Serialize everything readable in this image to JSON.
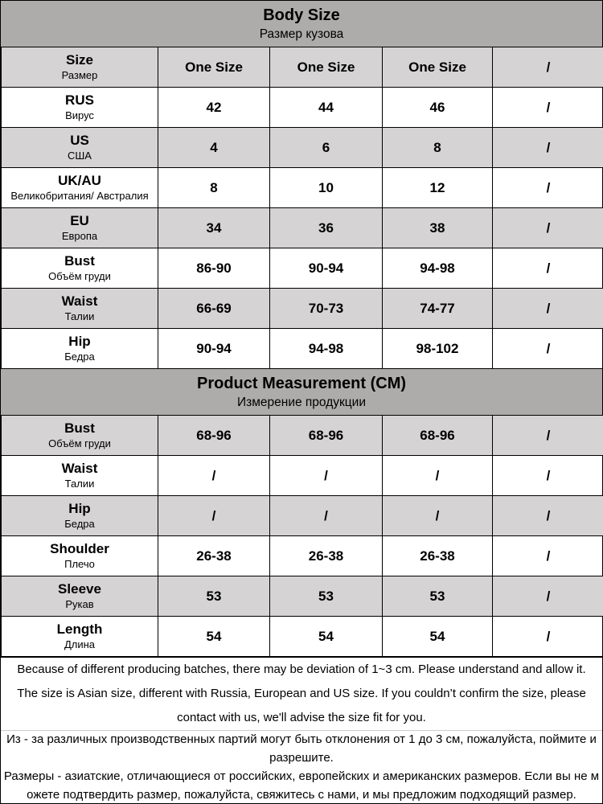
{
  "colors": {
    "header_bg": "#aeabab",
    "shaded_row_bg": "#d5d3d3",
    "border": "#000000",
    "note_divider": "#cccccc",
    "text": "#000000",
    "background": "#ffffff"
  },
  "chart_data": [
    {
      "type": "table",
      "title": "Body Size",
      "subtitle": "Размер кузова",
      "columns": [
        "label",
        "size1",
        "size2",
        "size3",
        "size4"
      ],
      "rows": [
        {
          "label_en": "Size",
          "label_ru": "Размер",
          "values": [
            "One Size",
            "One Size",
            "One Size",
            "/"
          ],
          "shaded": true
        },
        {
          "label_en": "RUS",
          "label_ru": "Вирус",
          "values": [
            "42",
            "44",
            "46",
            "/"
          ],
          "shaded": false
        },
        {
          "label_en": "US",
          "label_ru": "США",
          "values": [
            "4",
            "6",
            "8",
            "/"
          ],
          "shaded": true
        },
        {
          "label_en": "UK/AU",
          "label_ru": "Великобритания/ Австралия",
          "values": [
            "8",
            "10",
            "12",
            "/"
          ],
          "shaded": false
        },
        {
          "label_en": "EU",
          "label_ru": "Европа",
          "values": [
            "34",
            "36",
            "38",
            "/"
          ],
          "shaded": true
        },
        {
          "label_en": "Bust",
          "label_ru": "Объём груди",
          "values": [
            "86-90",
            "90-94",
            "94-98",
            "/"
          ],
          "shaded": false
        },
        {
          "label_en": "Waist",
          "label_ru": "Талии",
          "values": [
            "66-69",
            "70-73",
            "74-77",
            "/"
          ],
          "shaded": true
        },
        {
          "label_en": "Hip",
          "label_ru": "Бедра",
          "values": [
            "90-94",
            "94-98",
            "98-102",
            "/"
          ],
          "shaded": false
        }
      ]
    },
    {
      "type": "table",
      "title": "Product Measurement (CM)",
      "subtitle": "Измерение продукции",
      "columns": [
        "label",
        "size1",
        "size2",
        "size3",
        "size4"
      ],
      "rows": [
        {
          "label_en": "Bust",
          "label_ru": "Объём груди",
          "values": [
            "68-96",
            "68-96",
            "68-96",
            "/"
          ],
          "shaded": true
        },
        {
          "label_en": "Waist",
          "label_ru": "Талии",
          "values": [
            "/",
            "/",
            "/",
            "/"
          ],
          "shaded": false
        },
        {
          "label_en": "Hip",
          "label_ru": "Бедра",
          "values": [
            "/",
            "/",
            "/",
            "/"
          ],
          "shaded": true
        },
        {
          "label_en": "Shoulder",
          "label_ru": "Плечо",
          "values": [
            "26-38",
            "26-38",
            "26-38",
            "/"
          ],
          "shaded": false
        },
        {
          "label_en": "Sleeve",
          "label_ru": "Рукав",
          "values": [
            "53",
            "53",
            "53",
            "/"
          ],
          "shaded": true
        },
        {
          "label_en": "Length",
          "label_ru": "Длина",
          "values": [
            "54",
            "54",
            "54",
            "/"
          ],
          "shaded": false
        }
      ]
    }
  ],
  "notes": {
    "en": [
      "Because of different producing batches, there may be deviation of 1~3 cm. Please understand and allow it.",
      "The size is Asian size, different with Russia, European and US size. If you couldn’t confirm the size, please contact with us, we'll advise the size fit for you."
    ],
    "ru": [
      "Из - за различных производственных партий могут быть отклонения от 1 до 3 см, пожалуйста, поймите и разрешите.",
      "Размеры - азиатские, отличающиеся от российских, европейских и американских размеров. Если вы не можете подтвердить размер, пожалуйста, свяжитесь с нами, и мы предложим подходящий размер."
    ]
  }
}
